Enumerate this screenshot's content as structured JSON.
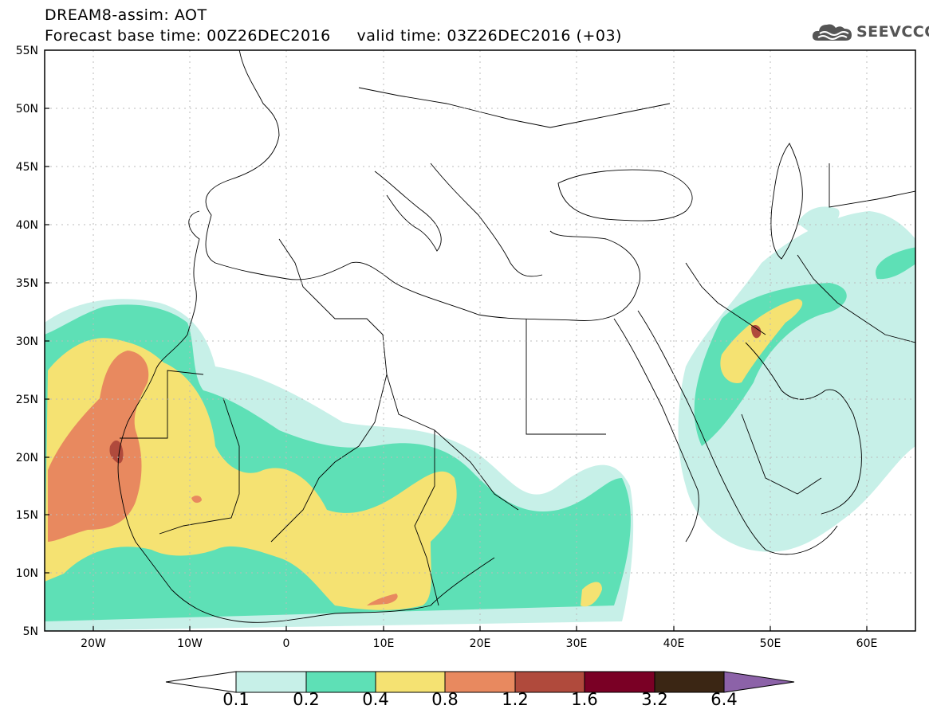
{
  "header": {
    "title_line1": "DREAM8-assim: AOT",
    "title_line2": "Forecast base time: 00Z26DEC2016     valid time: 03Z26DEC2016 (+03)"
  },
  "logo": {
    "text": "SEEVCCC",
    "icon": "cloud-icon"
  },
  "map": {
    "lon_ticks": [
      "20W",
      "10W",
      "0",
      "10E",
      "20E",
      "30E",
      "40E",
      "50E",
      "60E"
    ],
    "lat_ticks": [
      "55N",
      "50N",
      "45N",
      "40N",
      "35N",
      "30N",
      "25N",
      "20N",
      "15N",
      "10N",
      "5N"
    ],
    "lon_range": [
      -25,
      65
    ],
    "lat_range": [
      5,
      55
    ],
    "grid": "dotted",
    "variable": "AOT"
  },
  "colorbar": {
    "labels": [
      "0.1",
      "0.2",
      "0.4",
      "0.8",
      "1.2",
      "1.6",
      "3.2",
      "6.4"
    ],
    "colors": [
      "#ffffff",
      "#c7f0e8",
      "#5ee0b6",
      "#f5e272",
      "#e8895f",
      "#b04a3c",
      "#7a0025",
      "#3b2614",
      "#8c62a8"
    ]
  }
}
